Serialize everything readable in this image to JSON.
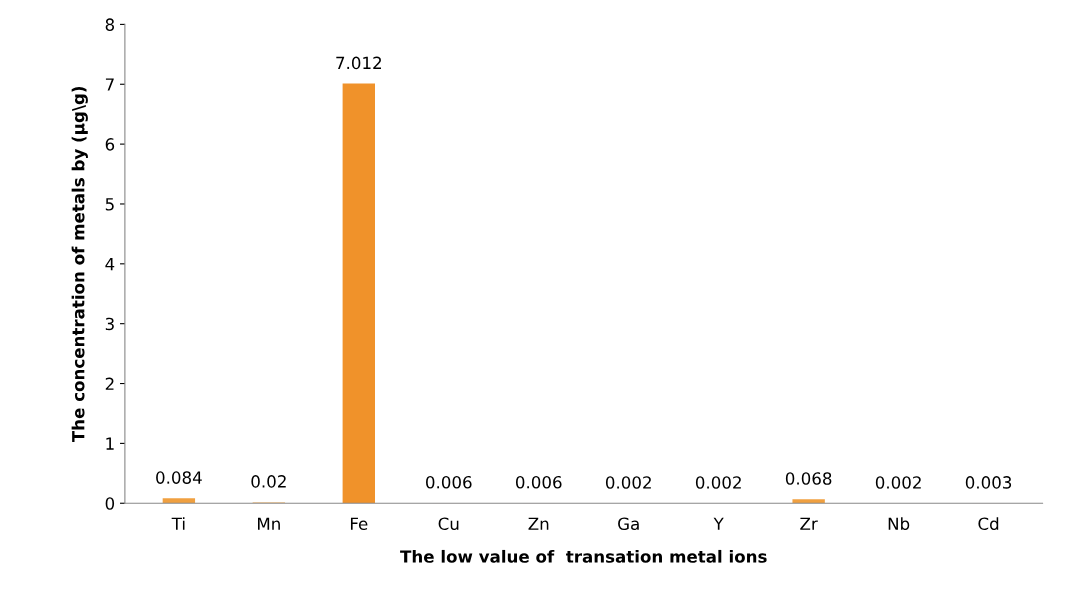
{
  "chart_data": {
    "type": "bar",
    "xlabel": "The low value of  transation metal ions",
    "ylabel": "The concentration of metals by (µg\\g)",
    "categories": [
      "Ti",
      "Mn",
      "Fe",
      "Cu",
      "Zn",
      "Ga",
      "Y",
      "Zr",
      "Nb",
      "Cd"
    ],
    "values": [
      0.084,
      0.02,
      7.012,
      0.006,
      0.006,
      0.002,
      0.002,
      0.068,
      0.002,
      0.003
    ],
    "colors": [
      "#f0a040",
      "#f5cfa0",
      "#f0922a",
      "#f5cfa0",
      "#f5cfa0",
      "#f5cfa0",
      "#f5cfa0",
      "#f0a040",
      "#f5cfa0",
      "#f5cfa0"
    ],
    "data_labels": true,
    "ylim": [
      0,
      8
    ],
    "yticks": [
      0,
      1,
      2,
      3,
      4,
      5,
      6,
      7,
      8
    ],
    "grid": false,
    "legend": false
  }
}
